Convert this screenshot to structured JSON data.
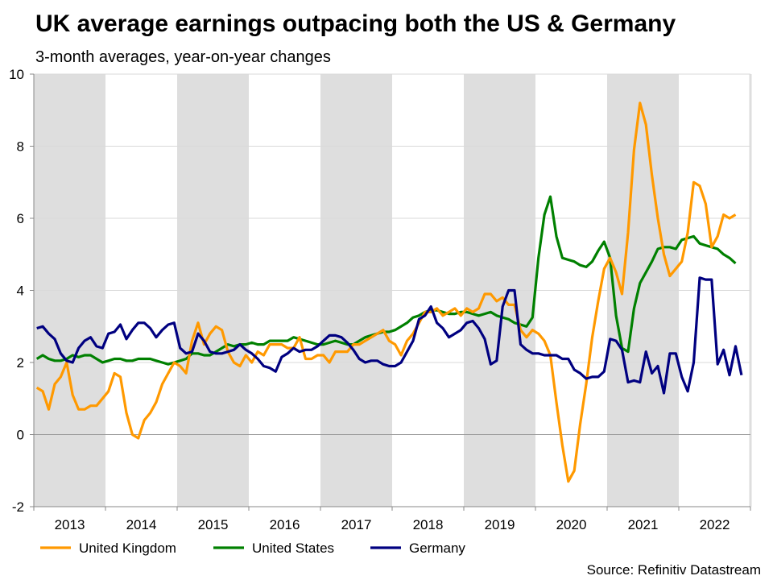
{
  "chart_data": {
    "type": "line",
    "title": "UK average earnings outpacing both the US & Germany",
    "subtitle": "3-month averages, year-on-year changes",
    "source": "Source: Refinitiv Datastream",
    "xlabel": "",
    "ylabel": "",
    "ylim": [
      -2,
      10
    ],
    "yticks": [
      "-2",
      "0",
      "2",
      "4",
      "6",
      "8",
      "10"
    ],
    "ytick_values": [
      -2,
      0,
      2,
      4,
      6,
      8,
      10
    ],
    "x_unit": "monthly, starting January 2013",
    "years": [
      "2013",
      "2014",
      "2015",
      "2016",
      "2017",
      "2018",
      "2019",
      "2020",
      "2021",
      "2022"
    ],
    "shaded_years": [
      "2013",
      "2015",
      "2017",
      "2019",
      "2021"
    ],
    "grid": true,
    "legend_position": "bottom-left",
    "series": [
      {
        "name": "United Kingdom",
        "color": "#FF9900",
        "values": [
          1.3,
          1.2,
          0.7,
          1.4,
          1.6,
          2.0,
          1.1,
          0.7,
          0.7,
          0.8,
          0.8,
          1.0,
          1.2,
          1.7,
          1.6,
          0.6,
          0.0,
          -0.1,
          0.4,
          0.6,
          0.9,
          1.4,
          1.7,
          2.0,
          1.9,
          1.7,
          2.6,
          3.1,
          2.5,
          2.8,
          3.0,
          2.9,
          2.3,
          2.0,
          1.9,
          2.2,
          2.0,
          2.3,
          2.2,
          2.5,
          2.5,
          2.5,
          2.4,
          2.4,
          2.7,
          2.1,
          2.1,
          2.2,
          2.2,
          2.0,
          2.3,
          2.3,
          2.3,
          2.5,
          2.5,
          2.6,
          2.7,
          2.8,
          2.9,
          2.6,
          2.5,
          2.2,
          2.6,
          2.8,
          3.1,
          3.4,
          3.4,
          3.5,
          3.3,
          3.4,
          3.5,
          3.3,
          3.5,
          3.4,
          3.5,
          3.9,
          3.9,
          3.7,
          3.8,
          3.6,
          3.6,
          2.9,
          2.7,
          2.9,
          2.8,
          2.6,
          2.2,
          0.9,
          -0.3,
          -1.3,
          -1.0,
          0.3,
          1.4,
          2.7,
          3.7,
          4.6,
          4.9,
          4.5,
          3.9,
          5.6,
          7.9,
          9.2,
          8.6,
          7.2,
          6.0,
          5.0,
          4.4,
          4.6,
          4.8,
          5.6,
          7.0,
          6.9,
          6.4,
          5.2,
          5.5,
          6.1,
          6.0,
          6.1
        ]
      },
      {
        "name": "United States",
        "color": "#008000",
        "values": [
          2.1,
          2.2,
          2.1,
          2.05,
          2.05,
          2.1,
          2.2,
          2.15,
          2.2,
          2.2,
          2.1,
          2.0,
          2.05,
          2.1,
          2.1,
          2.05,
          2.05,
          2.1,
          2.1,
          2.1,
          2.05,
          2.0,
          1.95,
          2.0,
          2.05,
          2.1,
          2.25,
          2.25,
          2.2,
          2.2,
          2.3,
          2.4,
          2.5,
          2.45,
          2.5,
          2.5,
          2.55,
          2.5,
          2.5,
          2.6,
          2.6,
          2.6,
          2.6,
          2.7,
          2.65,
          2.6,
          2.55,
          2.5,
          2.5,
          2.55,
          2.6,
          2.55,
          2.5,
          2.5,
          2.6,
          2.7,
          2.75,
          2.8,
          2.85,
          2.85,
          2.9,
          3.0,
          3.1,
          3.25,
          3.3,
          3.4,
          3.45,
          3.45,
          3.4,
          3.35,
          3.35,
          3.4,
          3.4,
          3.35,
          3.3,
          3.35,
          3.4,
          3.3,
          3.25,
          3.2,
          3.1,
          3.05,
          3.0,
          3.25,
          4.9,
          6.1,
          6.6,
          5.5,
          4.9,
          4.85,
          4.8,
          4.7,
          4.65,
          4.8,
          5.1,
          5.35,
          4.9,
          3.3,
          2.4,
          2.3,
          3.5,
          4.2,
          4.5,
          4.8,
          5.15,
          5.2,
          5.2,
          5.15,
          5.4,
          5.45,
          5.5,
          5.3,
          5.25,
          5.2,
          5.15,
          5.0,
          4.9,
          4.75
        ]
      },
      {
        "name": "Germany",
        "color": "#000080",
        "values": [
          2.95,
          3.0,
          2.8,
          2.65,
          2.25,
          2.05,
          2.0,
          2.4,
          2.6,
          2.7,
          2.45,
          2.4,
          2.8,
          2.85,
          3.05,
          2.65,
          2.9,
          3.1,
          3.1,
          2.95,
          2.7,
          2.9,
          3.05,
          3.1,
          2.4,
          2.25,
          2.3,
          2.8,
          2.6,
          2.3,
          2.25,
          2.25,
          2.3,
          2.35,
          2.5,
          2.35,
          2.25,
          2.1,
          1.9,
          1.85,
          1.75,
          2.15,
          2.25,
          2.4,
          2.3,
          2.35,
          2.35,
          2.45,
          2.6,
          2.75,
          2.75,
          2.7,
          2.55,
          2.35,
          2.1,
          2.0,
          2.05,
          2.05,
          1.95,
          1.9,
          1.9,
          2.0,
          2.3,
          2.6,
          3.2,
          3.3,
          3.55,
          3.1,
          2.95,
          2.7,
          2.8,
          2.9,
          3.1,
          3.15,
          2.95,
          2.65,
          1.95,
          2.05,
          3.55,
          4.0,
          4.0,
          2.5,
          2.35,
          2.25,
          2.25,
          2.2,
          2.2,
          2.2,
          2.1,
          2.1,
          1.8,
          1.7,
          1.55,
          1.6,
          1.6,
          1.75,
          2.65,
          2.6,
          2.35,
          1.45,
          1.5,
          1.45,
          2.3,
          1.7,
          1.9,
          1.15,
          2.25,
          2.25,
          1.6,
          1.2,
          2.0,
          4.35,
          4.3,
          4.3,
          1.95,
          2.35,
          1.65,
          2.45,
          1.65
        ]
      }
    ]
  }
}
